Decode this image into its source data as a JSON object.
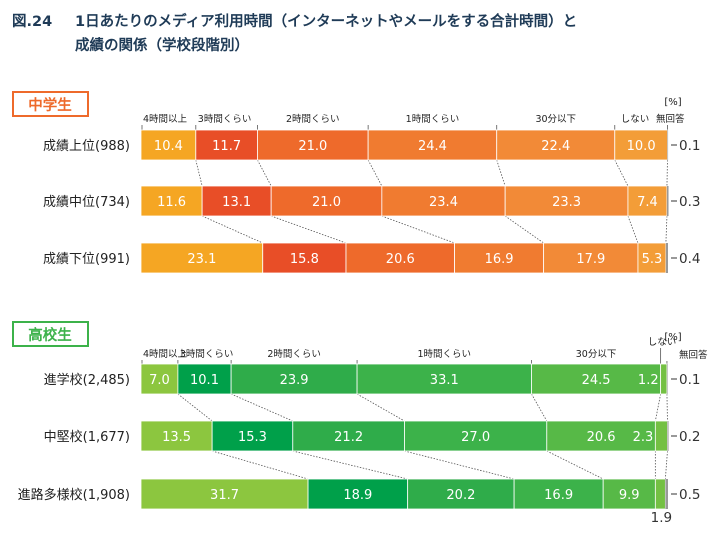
{
  "figure": {
    "number": "図.24",
    "title_line1": "1日あたりのメディア利用時間（インターネットやメールをする合計時間）と",
    "title_line2": "成績の関係（学校段階別）"
  },
  "chart_data": [
    {
      "type": "bar",
      "stacked": true,
      "orientation": "horizontal",
      "panel_label": "中学生",
      "unit": "[%]",
      "categories": [
        "4時間以上",
        "3時間くらい",
        "2時間くらい",
        "1時間くらい",
        "30分以下",
        "しない",
        "無回答"
      ],
      "rows": [
        {
          "label": "成績上位(988)",
          "values": [
            10.4,
            11.7,
            21.0,
            24.4,
            22.4,
            10.0,
            0.1
          ]
        },
        {
          "label": "成績中位(734)",
          "values": [
            11.6,
            13.1,
            21.0,
            23.4,
            23.3,
            7.4,
            0.3
          ]
        },
        {
          "label": "成績下位(991)",
          "values": [
            23.1,
            15.8,
            20.6,
            16.9,
            17.9,
            5.3,
            0.4
          ]
        }
      ],
      "colors": [
        "#f5a623",
        "#e84e27",
        "#ee6a2b",
        "#f07b30",
        "#f28a37",
        "#f39d38",
        "#999999"
      ]
    },
    {
      "type": "bar",
      "stacked": true,
      "orientation": "horizontal",
      "panel_label": "高校生",
      "unit": "[%]",
      "categories": [
        "4時間以上",
        "3時間くらい",
        "2時間くらい",
        "1時間くらい",
        "30分以下",
        "しない",
        "無回答"
      ],
      "rows": [
        {
          "label": "進学校(2,485)",
          "values": [
            7.0,
            10.1,
            23.9,
            33.1,
            24.5,
            1.2,
            0.1
          ]
        },
        {
          "label": "中堅校(1,677)",
          "values": [
            13.5,
            15.3,
            21.2,
            27.0,
            20.6,
            2.3,
            0.2
          ]
        },
        {
          "label": "進路多様校(1,908)",
          "values": [
            31.7,
            18.9,
            20.2,
            16.9,
            9.9,
            1.9,
            0.5
          ]
        }
      ],
      "colors": [
        "#8cc63f",
        "#00a04a",
        "#2fac4a",
        "#3cb24a",
        "#57b947",
        "#74c043",
        "#999999"
      ]
    }
  ],
  "theme": {
    "jhs_tag_color": "#ee6a2b",
    "hs_tag_color": "#3cb24a",
    "title_color": "#1f3b57"
  }
}
